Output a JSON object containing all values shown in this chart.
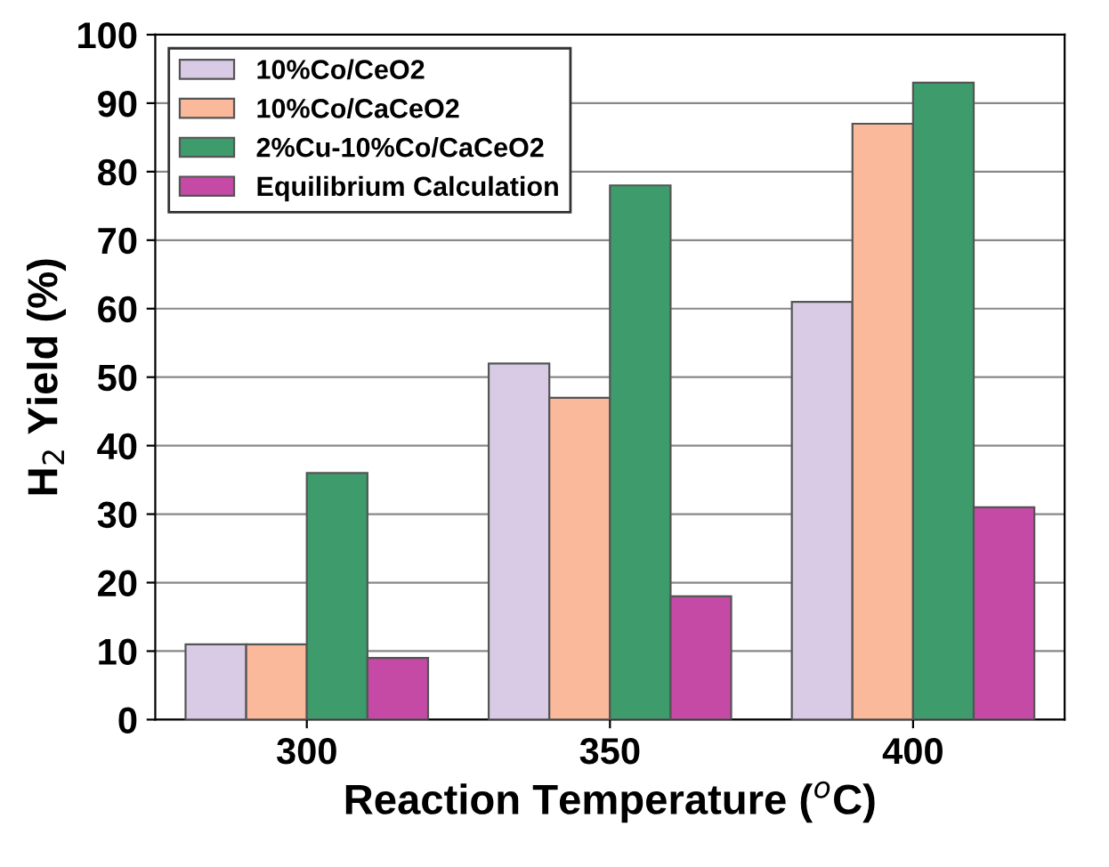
{
  "chart_data": {
    "type": "bar",
    "xlabel": "Reaction Temperature ($^{o}$C)",
    "ylabel": "H$_{2}$ Yield (%)",
    "categories": [
      "300",
      "350",
      "400"
    ],
    "series": [
      {
        "name": "10%Co/CeO2",
        "color": "#d9cbe6",
        "values": [
          11,
          52,
          61
        ]
      },
      {
        "name": "10%Co/CaCeO2",
        "color": "#f9b99a",
        "values": [
          11,
          47,
          87
        ]
      },
      {
        "name": "2%Cu-10%Co/CaCeO2",
        "color": "#3e9c6c",
        "values": [
          36,
          78,
          93
        ]
      },
      {
        "name": "Equilibrium Calculation",
        "color": "#c44aa6",
        "values": [
          9,
          18,
          31
        ]
      }
    ],
    "ylim": [
      0,
      100
    ],
    "yticks": [
      0,
      10,
      20,
      30,
      40,
      50,
      60,
      70,
      80,
      90,
      100
    ],
    "grid": "y",
    "legend": "top left"
  }
}
